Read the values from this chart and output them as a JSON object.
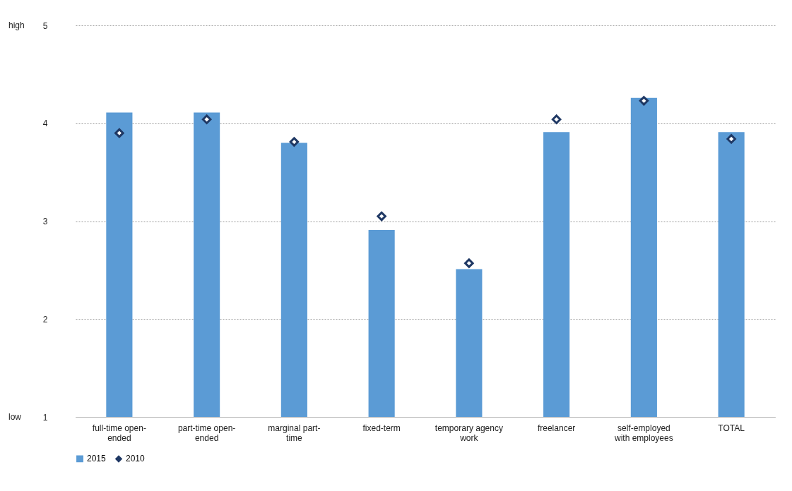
{
  "chart_data": {
    "type": "bar",
    "categories": [
      "full-time open-ended",
      "part-time open-ended",
      "marginal part-time",
      "fixed-term",
      "temporary agency work",
      "freelancer",
      "self-employed with employees",
      "TOTAL"
    ],
    "series": [
      {
        "name": "2015",
        "color": "#5b9bd5",
        "values": [
          4.11,
          4.11,
          3.8,
          2.91,
          2.51,
          3.91,
          4.26,
          3.91
        ]
      },
      {
        "name": "2010",
        "type": "scatter",
        "color": "#1f3864",
        "marker": "diamond",
        "values": [
          3.9,
          4.04,
          3.81,
          3.05,
          2.57,
          4.04,
          4.23,
          3.84
        ]
      }
    ],
    "ylim": [
      1,
      5
    ],
    "yticks": [
      1,
      2,
      3,
      4,
      5
    ],
    "grid": "y",
    "legend": "bottom",
    "annotations": [
      "high",
      "low"
    ]
  }
}
